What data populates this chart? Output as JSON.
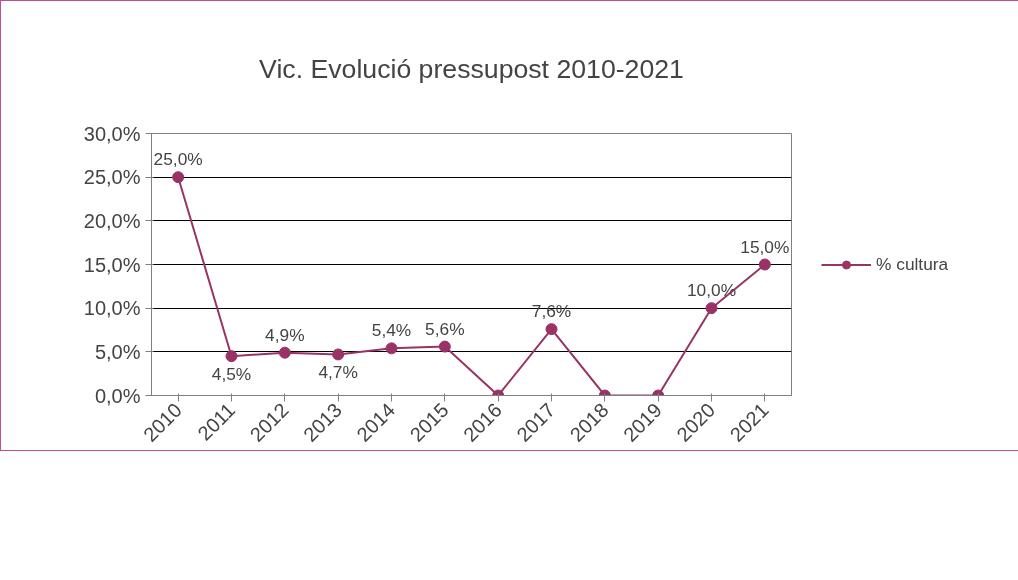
{
  "chart_data": {
    "type": "line",
    "title": "Vic. Evolució pressupost 2010-2021",
    "categories": [
      "2010",
      "2011",
      "2012",
      "2013",
      "2014",
      "2015",
      "2016",
      "2017",
      "2018",
      "2019",
      "2020",
      "2021"
    ],
    "series": [
      {
        "name": "% cultura",
        "color": "#993366",
        "values": [
          25.0,
          4.5,
          4.9,
          4.7,
          5.4,
          5.6,
          0,
          7.6,
          0,
          0,
          10.0,
          15.0
        ],
        "value_labels": [
          "25,0%",
          "4,5%",
          "4,9%",
          "4,7%",
          "5,4%",
          "5,6%",
          null,
          "7,6%",
          null,
          null,
          "10,0%",
          "15,0%"
        ]
      }
    ],
    "ylim": [
      0,
      30
    ],
    "yticks": [
      {
        "value": 0,
        "label": "0,0%"
      },
      {
        "value": 5,
        "label": "5,0%"
      },
      {
        "value": 10,
        "label": "10,0%"
      },
      {
        "value": 15,
        "label": "15,0%"
      },
      {
        "value": 20,
        "label": "20,0%"
      },
      {
        "value": 25,
        "label": "25,0%"
      },
      {
        "value": 30,
        "label": "30,0%"
      }
    ],
    "grid": "y",
    "legend": "right",
    "marker": "circle",
    "line_style": "solid"
  }
}
